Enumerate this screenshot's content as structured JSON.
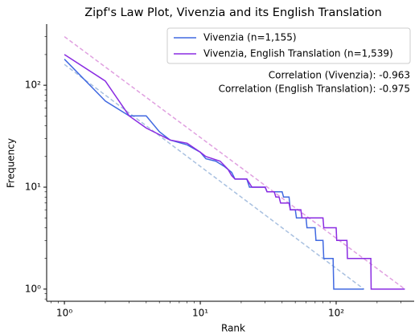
{
  "chart_data": {
    "type": "line",
    "title": "Zipf's Law Plot, Vivenzia and its English Translation",
    "x_label": "Rank",
    "y_label": "Frequency",
    "xscale": "log",
    "yscale": "log",
    "xlim": [
      0.74,
      375
    ],
    "ylim": [
      0.76,
      398
    ],
    "xticks": [
      {
        "value": 1,
        "label": "10⁰"
      },
      {
        "value": 10,
        "label": "10¹"
      },
      {
        "value": 100,
        "label": "10²"
      }
    ],
    "yticks": [
      {
        "value": 1,
        "label": "10⁰"
      },
      {
        "value": 10,
        "label": "10¹"
      },
      {
        "value": 100,
        "label": "10²"
      }
    ],
    "legend": "upper right",
    "annotations": [
      "Correlation (Vivenzia): -0.963",
      "Correlation (English Translation): -0.975"
    ],
    "series": [
      {
        "name": "Vivenzia (n=1,155)",
        "color": "#4169e1",
        "x": [
          1,
          2,
          3,
          4,
          5,
          6,
          8,
          10,
          11,
          13,
          15,
          17,
          18,
          22,
          23,
          30,
          31,
          40,
          41,
          45,
          46,
          50,
          51,
          60,
          61,
          70,
          71,
          80,
          81,
          95,
          96,
          160
        ],
        "values": [
          180,
          70,
          50,
          50,
          35,
          29,
          26,
          22,
          19,
          18,
          16,
          14,
          12,
          12,
          10,
          10,
          9,
          9,
          8,
          8,
          6,
          6,
          5,
          5,
          4,
          4,
          3,
          3,
          2,
          2,
          1,
          1
        ]
      },
      {
        "name": "Vivenzia, English Translation (n=1,539)",
        "color": "#8a2be2",
        "x": [
          1,
          2,
          3,
          4,
          6,
          8,
          10,
          11,
          14,
          16,
          17,
          18,
          22,
          24,
          30,
          31,
          35,
          36,
          38,
          39,
          45,
          46,
          55,
          56,
          80,
          81,
          100,
          101,
          120,
          121,
          180,
          181,
          320
        ],
        "values": [
          200,
          110,
          50,
          38,
          29,
          27,
          22,
          20,
          18,
          15,
          13,
          12,
          12,
          10,
          10,
          9,
          9,
          8,
          8,
          7,
          7,
          6,
          6,
          5,
          5,
          4,
          4,
          3,
          3,
          2,
          2,
          1,
          1
        ]
      }
    ],
    "fit_lines": [
      {
        "color": "#a8c0e0",
        "x": [
          1,
          160
        ],
        "values": [
          160,
          1
        ]
      },
      {
        "color": "#e0a0e0",
        "x": [
          1,
          320
        ],
        "values": [
          300,
          1
        ]
      }
    ]
  }
}
